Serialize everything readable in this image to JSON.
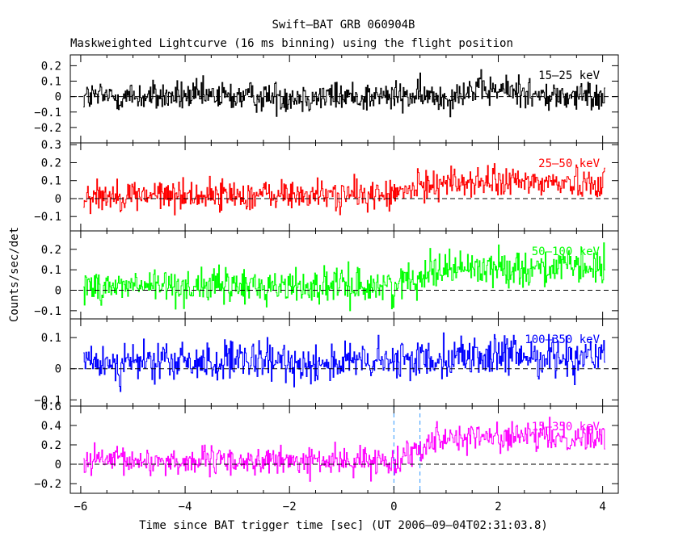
{
  "chart_data": {
    "type": "line",
    "title": "Swift–BAT GRB 060904B",
    "subtitle": "Maskweighted Lightcurve (16 ms binning) using the flight position",
    "xlabel": "Time since BAT trigger time [sec] (UT 2006–09–04T02:31:03.8)",
    "ylabel": "Counts/sec/det",
    "xlim": [
      -6.2,
      4.3
    ],
    "x_ticks": [
      -6,
      -4,
      -2,
      0,
      2,
      4
    ],
    "x_tick_labels": [
      "−6",
      "−4",
      "−2",
      "0",
      "2",
      "4"
    ],
    "x_range_data": [
      -5.95,
      4.05
    ],
    "bin_width": 0.016,
    "vlines": [
      0,
      0.5
    ],
    "vline_color": "#3399ff",
    "panels": [
      {
        "band": "15–25 keV",
        "color": "#000000",
        "ylim": [
          -0.3,
          0.27
        ],
        "y_ticks": [
          -0.2,
          -0.1,
          0,
          0.1,
          0.2
        ],
        "y_tick_labels": [
          "−0.2",
          "−0.1",
          "0",
          "0.1",
          "0.2"
        ],
        "baseline": 0.0,
        "rise": 0.0,
        "peak_rise": 0.04,
        "noise": 0.07
      },
      {
        "band": "25–50 keV",
        "color": "#ff0000",
        "ylim": [
          -0.18,
          0.31
        ],
        "y_ticks": [
          -0.1,
          0,
          0.1,
          0.2,
          0.3
        ],
        "y_tick_labels": [
          "−0.1",
          "0",
          "0.1",
          "0.2",
          "0.3"
        ],
        "baseline": 0.02,
        "rise": 0.07,
        "peak_rise": 0.0,
        "noise": 0.06
      },
      {
        "band": "50–100 keV",
        "color": "#00ff00",
        "ylim": [
          -0.14,
          0.29
        ],
        "y_ticks": [
          -0.1,
          0,
          0.1,
          0.2
        ],
        "y_tick_labels": [
          "−0.1",
          "0",
          "0.1",
          "0.2"
        ],
        "baseline": 0.02,
        "rise": 0.09,
        "peak_rise": 0.0,
        "noise": 0.06
      },
      {
        "band": "100–350 keV",
        "color": "#0000ff",
        "ylim": [
          -0.12,
          0.16
        ],
        "y_ticks": [
          -0.1,
          0,
          0.1
        ],
        "y_tick_labels": [
          "−0.1",
          "0",
          "0.1"
        ],
        "baseline": 0.02,
        "rise": 0.02,
        "peak_rise": 0.0,
        "noise": 0.045
      },
      {
        "band": "15–350 keV",
        "color": "#ff00ff",
        "ylim": [
          -0.3,
          0.6
        ],
        "y_ticks": [
          -0.2,
          0,
          0.2,
          0.4,
          0.6
        ],
        "y_tick_labels": [
          "−0.2",
          "0",
          "0.2",
          "0.4",
          "0.6"
        ],
        "baseline": 0.03,
        "rise": 0.25,
        "peak_rise": 0.0,
        "noise": 0.1
      }
    ],
    "grid": false,
    "zero_line": "dashed"
  }
}
